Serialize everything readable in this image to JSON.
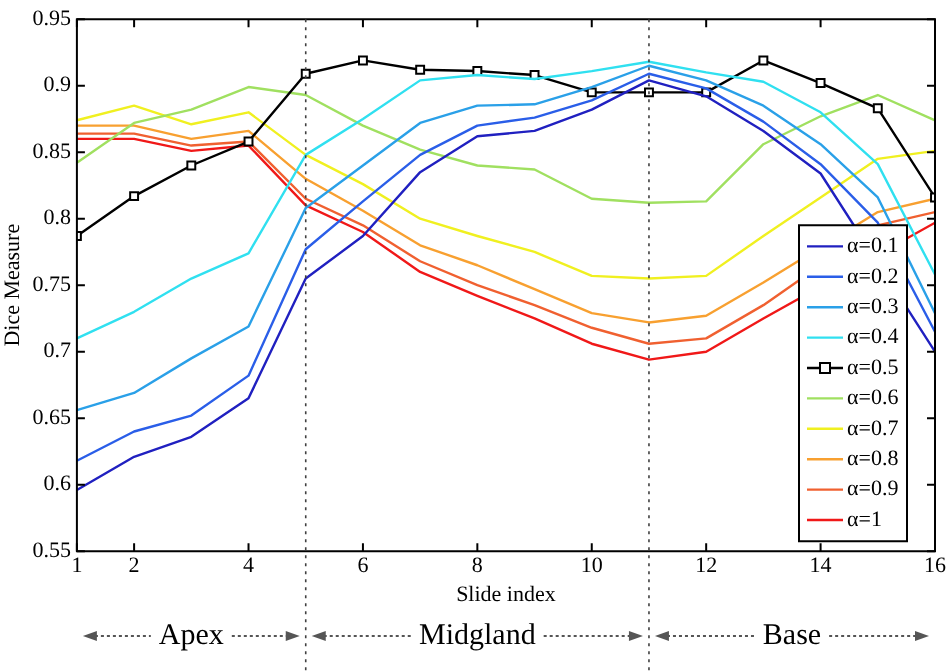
{
  "chart_data": {
    "type": "line",
    "xlabel": "Slide index",
    "ylabel": "Dice Measure",
    "x": [
      1,
      2,
      3,
      4,
      5,
      6,
      7,
      8,
      9,
      10,
      11,
      12,
      13,
      14,
      15,
      16
    ],
    "xlim": [
      1,
      16
    ],
    "xticks": [
      1,
      2,
      4,
      6,
      8,
      10,
      12,
      14,
      16
    ],
    "ylim": [
      0.55,
      0.95
    ],
    "yticks": [
      0.55,
      0.6,
      0.65,
      0.7,
      0.75,
      0.8,
      0.85,
      0.9,
      0.95
    ],
    "grid": false,
    "legend": "bottom right",
    "marker": "none",
    "line_style": "solid",
    "ref_lines": [
      {
        "axis": "x",
        "value": 5,
        "line_style": "dotted",
        "color": "#404040"
      },
      {
        "axis": "x",
        "value": 11,
        "line_style": "dotted",
        "color": "#404040"
      }
    ],
    "annotations": [
      "Apex",
      "Midgland",
      "Base"
    ],
    "series": [
      {
        "name": "α=0.1",
        "color": "#2020c0",
        "values": [
          0.596,
          0.621,
          0.636,
          0.665,
          0.755,
          0.787,
          0.835,
          0.862,
          0.866,
          0.882,
          0.904,
          0.892,
          0.866,
          0.834,
          null,
          0.7
        ]
      },
      {
        "name": "α=0.2",
        "color": "#2a5ee8",
        "values": [
          0.618,
          0.64,
          0.652,
          0.682,
          0.777,
          0.813,
          0.848,
          0.87,
          0.876,
          0.889,
          0.909,
          0.898,
          0.873,
          0.841,
          0.797,
          0.715
        ]
      },
      {
        "name": "α=0.3",
        "color": "#2aa0e8",
        "values": [
          0.656,
          0.669,
          0.695,
          0.719,
          0.808,
          0.84,
          0.872,
          0.885,
          0.886,
          0.899,
          0.915,
          0.904,
          0.885,
          0.856,
          0.816,
          0.729
        ]
      },
      {
        "name": "α=0.4",
        "color": "#30e0f0",
        "values": [
          0.71,
          0.73,
          0.755,
          0.774,
          0.848,
          0.875,
          0.904,
          0.908,
          0.905,
          0.911,
          0.918,
          0.91,
          0.903,
          0.88,
          0.841,
          0.758
        ]
      },
      {
        "name": "α=0.5",
        "color": "#000000",
        "marker": "square",
        "values": [
          0.787,
          0.817,
          0.84,
          0.858,
          0.909,
          0.919,
          0.912,
          0.911,
          0.908,
          0.895,
          0.895,
          0.895,
          0.919,
          0.902,
          0.883,
          0.816
        ]
      },
      {
        "name": "α=0.6",
        "color": "#a0e060",
        "values": [
          0.842,
          0.872,
          0.882,
          0.899,
          0.893,
          0.87,
          0.852,
          0.84,
          0.837,
          0.815,
          0.812,
          0.813,
          0.856,
          0.877,
          0.893,
          0.874
        ]
      },
      {
        "name": "α=0.7",
        "color": "#f0f020",
        "values": [
          0.874,
          0.885,
          0.871,
          0.88,
          0.848,
          0.826,
          0.8,
          0.787,
          0.775,
          0.757,
          0.755,
          0.757,
          0.787,
          0.816,
          0.845,
          0.851
        ]
      },
      {
        "name": "α=0.8",
        "color": "#f8a030",
        "values": [
          0.87,
          0.87,
          0.86,
          0.866,
          0.83,
          0.806,
          0.78,
          0.765,
          0.747,
          0.729,
          0.722,
          0.727,
          0.752,
          null,
          0.805,
          0.815
        ]
      },
      {
        "name": "α=0.9",
        "color": "#f06030",
        "values": [
          0.864,
          0.864,
          0.855,
          0.858,
          0.815,
          0.795,
          0.768,
          0.75,
          0.735,
          0.718,
          0.706,
          0.71,
          0.735,
          null,
          0.795,
          0.805
        ]
      },
      {
        "name": "α=1",
        "color": "#f01818",
        "values": [
          0.86,
          0.86,
          0.851,
          0.855,
          0.81,
          0.79,
          0.76,
          0.742,
          0.725,
          0.706,
          0.694,
          0.7,
          0.725,
          null,
          null,
          0.797
        ]
      }
    ]
  }
}
